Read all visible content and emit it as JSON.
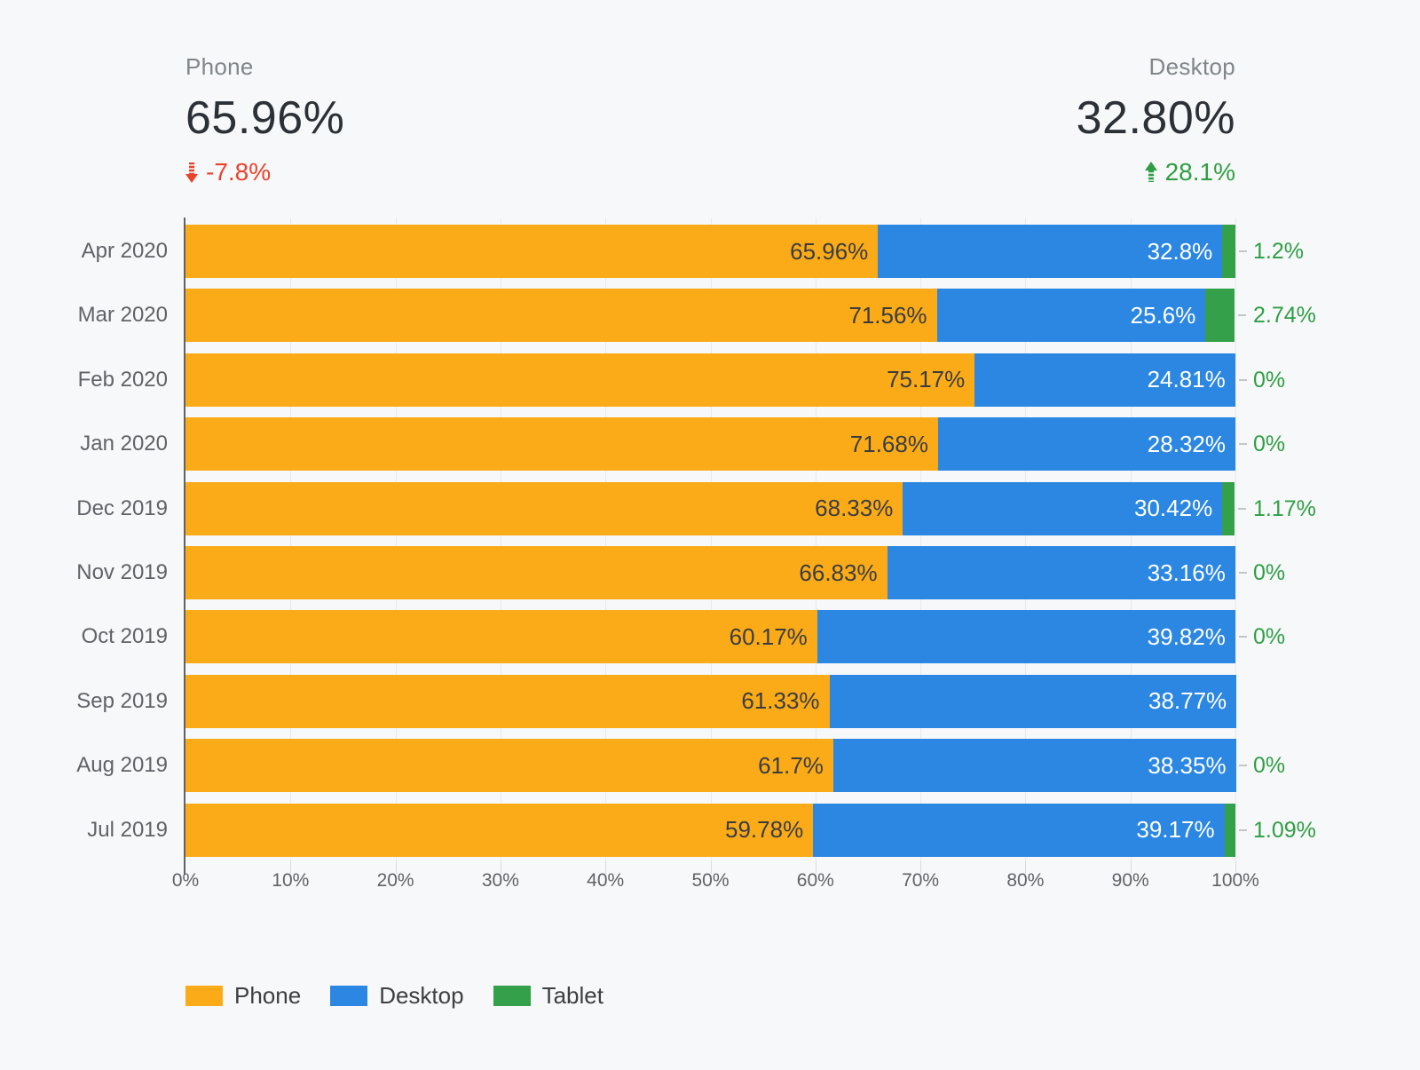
{
  "scorecards": {
    "phone": {
      "label": "Phone",
      "value": "65.96%",
      "delta": "-7.8%",
      "direction": "down"
    },
    "desktop": {
      "label": "Desktop",
      "value": "32.80%",
      "delta": "28.1%",
      "direction": "up"
    }
  },
  "chart_data": {
    "type": "bar",
    "orientation": "horizontal",
    "stacked": true,
    "categories": [
      "Apr 2020",
      "Mar 2020",
      "Feb 2020",
      "Jan 2020",
      "Dec 2019",
      "Nov 2019",
      "Oct 2019",
      "Sep 2019",
      "Aug 2019",
      "Jul 2019"
    ],
    "series": [
      {
        "name": "Phone",
        "color": "#FBAB18",
        "values": [
          65.96,
          71.56,
          75.17,
          71.68,
          68.33,
          66.83,
          60.17,
          61.33,
          61.7,
          59.78
        ],
        "labels": [
          "65.96%",
          "71.56%",
          "75.17%",
          "71.68%",
          "68.33%",
          "66.83%",
          "60.17%",
          "61.33%",
          "61.7%",
          "59.78%"
        ]
      },
      {
        "name": "Desktop",
        "color": "#2C87E2",
        "values": [
          32.8,
          25.6,
          24.81,
          28.32,
          30.42,
          33.16,
          39.82,
          38.77,
          38.35,
          39.17
        ],
        "labels": [
          "32.8%",
          "25.6%",
          "24.81%",
          "28.32%",
          "30.42%",
          "33.16%",
          "39.82%",
          "38.77%",
          "38.35%",
          "39.17%"
        ]
      },
      {
        "name": "Tablet",
        "color": "#34A04A",
        "values": [
          1.2,
          2.74,
          0,
          0,
          1.17,
          0,
          0,
          0,
          0,
          1.09
        ],
        "labels": [
          "1.2%",
          "2.74%",
          "0%",
          "0%",
          "1.17%",
          "0%",
          "0%",
          null,
          "0%",
          "1.09%"
        ]
      }
    ],
    "x_ticks": [
      "0%",
      "10%",
      "20%",
      "30%",
      "40%",
      "50%",
      "60%",
      "70%",
      "80%",
      "90%",
      "100%"
    ],
    "xlim": [
      0,
      100
    ],
    "grid": true,
    "legend": [
      {
        "label": "Phone",
        "color": "#FBAB18"
      },
      {
        "label": "Desktop",
        "color": "#2C87E2"
      },
      {
        "label": "Tablet",
        "color": "#34A04A"
      }
    ],
    "legend_position": "bottom"
  },
  "colors": {
    "background": "#F7F8F9",
    "negative": "#E8432C",
    "positive": "#2F9E44",
    "axis": "#5F6368",
    "value_text": "#2B3137",
    "title_text": "#80868B"
  }
}
